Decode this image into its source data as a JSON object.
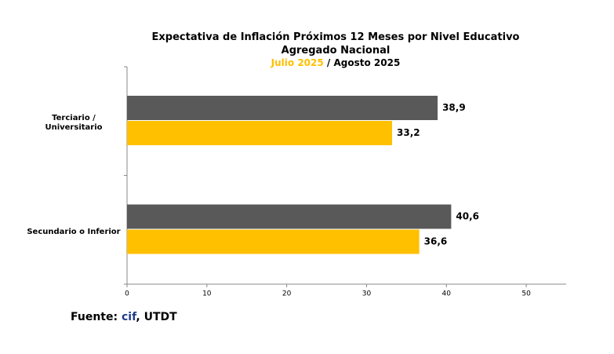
{
  "chart_data": {
    "type": "hbar",
    "title": "Expectativa de Inflación Próximos 12 Meses por Nivel Educativo",
    "subtitle": "Agregado Nacional",
    "legend_separator": "/",
    "categories": [
      "Terciario / Universitario",
      "Secundario o Inferior"
    ],
    "series": [
      {
        "name": "Julio 2025",
        "color": "#ffc000",
        "values": [
          33.2,
          36.6
        ],
        "value_labels": [
          "33,2",
          "36,6"
        ]
      },
      {
        "name": "Agosto 2025",
        "color": "#595959",
        "values": [
          38.9,
          40.6
        ],
        "value_labels": [
          "38,9",
          "40,6"
        ]
      }
    ],
    "xlim": [
      0,
      55
    ],
    "xticks": [
      0,
      10,
      20,
      30,
      40,
      50
    ],
    "grid": false,
    "source": [
      "Fuente:",
      "cif",
      ", UTDT"
    ]
  }
}
